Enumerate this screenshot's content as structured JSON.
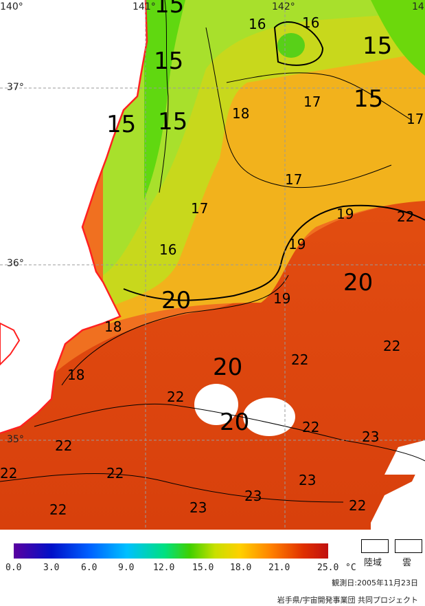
{
  "map": {
    "lon_labels": [
      "140°",
      "141°",
      "142°",
      "14"
    ],
    "lat_labels": [
      "37°",
      "36°",
      "35°"
    ],
    "contour_labels": [
      "15",
      "16",
      "16",
      "15",
      "15",
      "15",
      "15",
      "18",
      "17",
      "17",
      "15",
      "17",
      "17",
      "16",
      "19",
      "22",
      "19",
      "20",
      "20",
      "19",
      "18",
      "22",
      "22",
      "20",
      "18",
      "22",
      "20",
      "22",
      "23",
      "22",
      "22",
      "23",
      "23",
      "22",
      "22",
      "23",
      "22"
    ],
    "colors": {
      "land": "#ffffff",
      "coast": "#ff2020",
      "cloud": "#ffffff",
      "grid": "#9a9a9a"
    }
  },
  "legend": {
    "tick_labels": [
      "0.0",
      "3.0",
      "6.0",
      "9.0",
      "12.0",
      "15.0",
      "18.0",
      "21.0",
      "25.0"
    ],
    "unit": "°C",
    "land_label": "陸域",
    "cloud_label": "雲",
    "observation_date": "観測日:2005年11月23日",
    "credit": "岩手県/宇宙開発事業団 共同プロジェクト",
    "colormap": [
      "#5a00a0",
      "#0010c8",
      "#0060ff",
      "#00c0ff",
      "#00e080",
      "#40d000",
      "#c8e000",
      "#ffd000",
      "#ff8000",
      "#e03000",
      "#c01010"
    ]
  }
}
